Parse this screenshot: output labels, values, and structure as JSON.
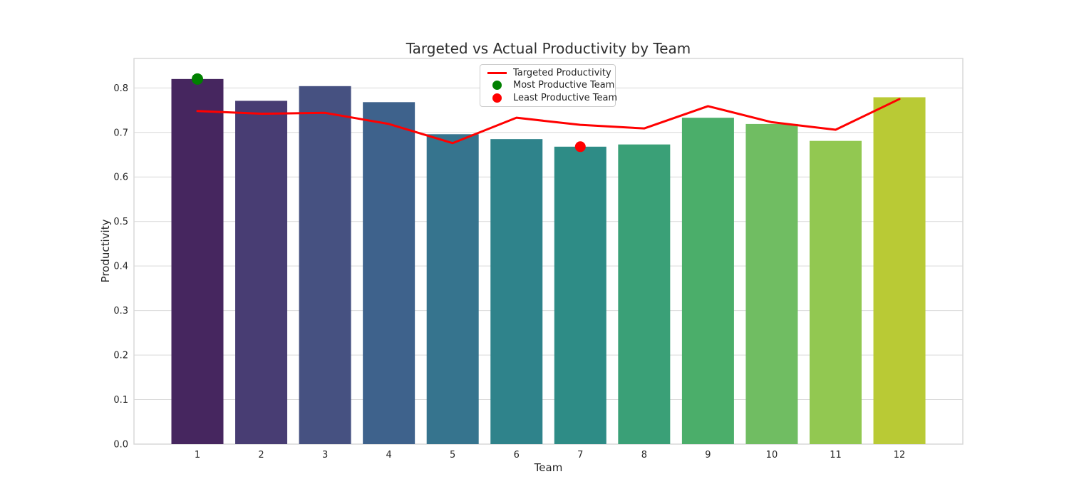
{
  "chart_data": {
    "type": "bar",
    "title": "Targeted vs Actual Productivity by Team",
    "xlabel": "Team",
    "ylabel": "Productivity",
    "categories": [
      "1",
      "2",
      "3",
      "4",
      "5",
      "6",
      "7",
      "8",
      "9",
      "10",
      "11",
      "12"
    ],
    "series": [
      {
        "name": "Actual Productivity",
        "type": "bar",
        "values": [
          0.82,
          0.771,
          0.804,
          0.768,
          0.696,
          0.685,
          0.668,
          0.673,
          0.733,
          0.719,
          0.681,
          0.779
        ]
      },
      {
        "name": "Targeted Productivity",
        "type": "line",
        "color": "#ff0000",
        "values": [
          0.748,
          0.742,
          0.744,
          0.719,
          0.676,
          0.733,
          0.717,
          0.709,
          0.759,
          0.723,
          0.706,
          0.775
        ]
      }
    ],
    "bar_colors": [
      "#46265f",
      "#483d73",
      "#465181",
      "#3e628c",
      "#36748e",
      "#2f838b",
      "#2e8c86",
      "#3aa077",
      "#4bae6a",
      "#70bd62",
      "#92c851",
      "#b9ca35"
    ],
    "annotations": [
      {
        "name": "Most Productive Team",
        "team": "1",
        "value": 0.82,
        "color": "#008000",
        "radius": 8
      },
      {
        "name": "Least Productive Team",
        "team": "7",
        "value": 0.668,
        "color": "#ff0000",
        "radius": 7.5
      }
    ],
    "yticks": [
      0.0,
      0.1,
      0.2,
      0.3,
      0.4,
      0.5,
      0.6,
      0.7,
      0.8
    ],
    "ylim": [
      0,
      0.866
    ],
    "grid": "horizontal",
    "grid_color": "#d9d9d9",
    "background": "#ffffff",
    "legend_position": "upper center-left"
  },
  "legend": {
    "items": [
      {
        "label": "Targeted Productivity",
        "marker": "line",
        "color": "#ff0000"
      },
      {
        "label": "Most Productive Team",
        "marker": "dot",
        "color": "#008000"
      },
      {
        "label": "Least Productive Team",
        "marker": "dot",
        "color": "#ff0000"
      }
    ]
  }
}
